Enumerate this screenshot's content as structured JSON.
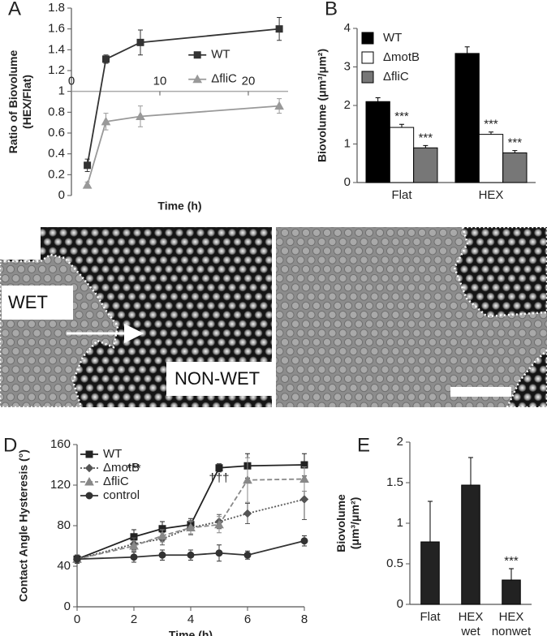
{
  "chart_data": [
    {
      "type": "line",
      "label": "A",
      "xlabel": "Time (h)",
      "ylabel": [
        "Ratio of Biovolume",
        "(HEX/Flat)"
      ],
      "xlim": [
        0,
        24.5
      ],
      "ylim": [
        0,
        1.8
      ],
      "xticks": [
        0,
        10,
        20
      ],
      "yticks": [
        0,
        0.2,
        0.4,
        0.6,
        0.8,
        1,
        1.2,
        1.4,
        1.6,
        1.8
      ],
      "reference_line": 1,
      "legend": "right",
      "series": [
        {
          "name": "WT",
          "color": "#333333",
          "marker": "square",
          "dash": "none",
          "x": [
            1.8,
            3.9,
            7.8,
            23.5
          ],
          "values": [
            0.29,
            1.31,
            1.47,
            1.6
          ],
          "errors": [
            0.06,
            0.04,
            0.12,
            0.11
          ]
        },
        {
          "name": "ΔfliC",
          "color": "#999999",
          "marker": "triangle",
          "dash": "none",
          "x": [
            1.8,
            3.9,
            7.8,
            23.5
          ],
          "values": [
            0.1,
            0.71,
            0.76,
            0.86
          ],
          "errors": [
            0.03,
            0.08,
            0.1,
            0.07
          ]
        }
      ]
    },
    {
      "type": "bar",
      "label": "B",
      "ylabel": [
        "Biovolume (μm³/μm²)"
      ],
      "categories": [
        "Flat",
        "HEX"
      ],
      "ylim": [
        0,
        4
      ],
      "yticks": [
        0,
        1,
        2,
        3,
        4
      ],
      "legend": "top-left",
      "series": [
        {
          "name": "WT",
          "color": "#000000",
          "values": [
            2.1,
            3.35
          ],
          "errors": [
            0.1,
            0.17
          ]
        },
        {
          "name": "ΔmotB",
          "color": "#ffffff",
          "values": [
            1.43,
            1.25
          ],
          "errors": [
            0.08,
            0.06
          ],
          "annotations": [
            "***",
            "***"
          ]
        },
        {
          "name": "ΔfliC",
          "color": "#777777",
          "values": [
            0.9,
            0.77
          ],
          "errors": [
            0.06,
            0.06
          ],
          "annotations": [
            "***",
            "***"
          ]
        }
      ]
    },
    {
      "type": "line",
      "label": "D",
      "xlabel": "Time (h)",
      "ylabel": [
        "Contact Angle Hysteresis (°)"
      ],
      "xlim": [
        0,
        8
      ],
      "ylim": [
        0,
        160
      ],
      "xticks": [
        0,
        2,
        4,
        6,
        8
      ],
      "yticks": [
        0,
        40,
        80,
        120,
        160
      ],
      "legend": "top-left",
      "annotations": [
        {
          "text": "***",
          "x": 2
        },
        {
          "text": "†††",
          "x": 5
        }
      ],
      "series": [
        {
          "name": "WT",
          "color": "#222222",
          "marker": "square",
          "dash": "none",
          "x": [
            0,
            2,
            3,
            4,
            5,
            6,
            8
          ],
          "values": [
            47,
            69,
            77,
            81,
            137,
            139,
            140
          ],
          "errors": [
            4,
            7,
            7,
            6,
            4,
            12,
            11
          ]
        },
        {
          "name": "ΔmotB",
          "color": "#555555",
          "marker": "diamond",
          "dash": "2 2",
          "x": [
            0,
            2,
            3,
            4,
            5,
            6,
            8
          ],
          "values": [
            47,
            62,
            67,
            78,
            84,
            92,
            106
          ],
          "errors": [
            4,
            6,
            6,
            7,
            7,
            10,
            20
          ]
        },
        {
          "name": "ΔfliC",
          "color": "#888888",
          "marker": "triangle",
          "dash": "6 3",
          "x": [
            0,
            2,
            3,
            4,
            5,
            6,
            8
          ],
          "values": [
            47,
            60,
            70,
            78,
            81,
            125,
            126
          ],
          "errors": [
            4,
            5,
            6,
            6,
            8,
            22,
            12
          ]
        },
        {
          "name": "control",
          "color": "#333333",
          "marker": "circle",
          "dash": "none",
          "x": [
            0,
            2,
            3,
            4,
            5,
            6,
            8
          ],
          "values": [
            47,
            49,
            51,
            51,
            53,
            51,
            65
          ],
          "errors": [
            4,
            5,
            5,
            5,
            8,
            4,
            5
          ]
        }
      ]
    },
    {
      "type": "bar",
      "label": "E",
      "ylabel": [
        "Biovolume",
        "(μm³/μm²)"
      ],
      "categories": [
        "Flat",
        "HEX wet",
        "HEX nonwet"
      ],
      "ylim": [
        0,
        2
      ],
      "yticks": [
        0,
        0.5,
        1,
        1.5,
        2
      ],
      "series": [
        {
          "color": "#222222",
          "values": [
            0.77,
            1.47,
            0.3
          ],
          "errors": [
            0.5,
            0.34,
            0.14
          ],
          "annotations": [
            null,
            null,
            "***"
          ]
        }
      ]
    }
  ],
  "panel_c": {
    "label": "C",
    "left_texts": [
      "WET",
      "NON-WET"
    ]
  }
}
